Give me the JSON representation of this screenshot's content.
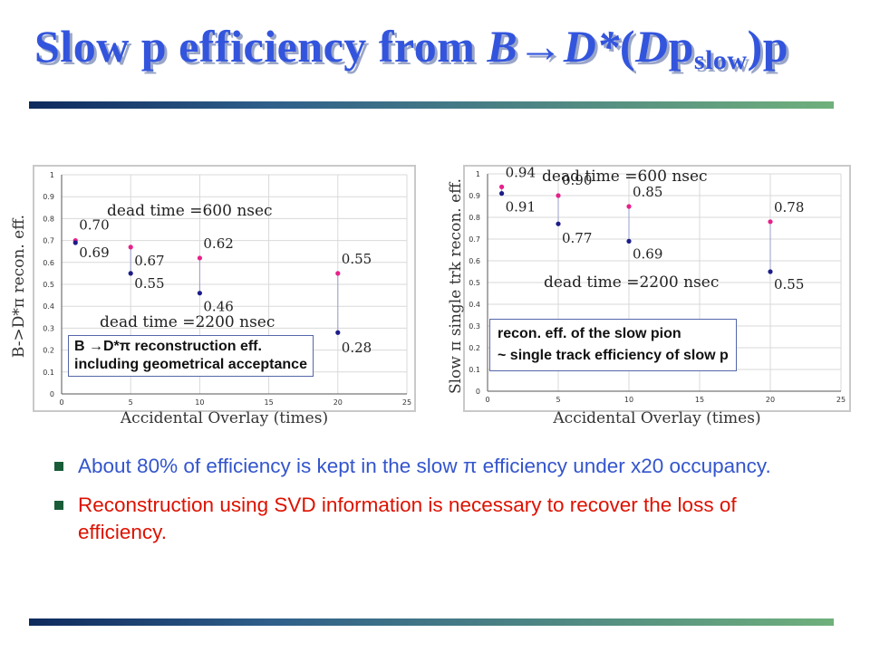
{
  "slide": {
    "title_parts": [
      "Slow p efficiency from ",
      "B",
      "→",
      "D*",
      "(",
      "D",
      "p",
      "slow",
      ")",
      "p"
    ],
    "accent_color": "#3355dd",
    "bullets": [
      {
        "text": "About 80% of efficiency is kept in the slow π efficiency under x20 occupancy.",
        "color": "#3355cc"
      },
      {
        "text": " Reconstruction using SVD information is necessary to recover the loss of efficiency.",
        "color": "#dd1100"
      }
    ]
  },
  "chart_data": [
    {
      "type": "scatter",
      "xlabel": "Accidental Overlay (times)",
      "ylabel": "B->D*π recon. eff.",
      "xlim": [
        0,
        25
      ],
      "ylim": [
        0,
        1
      ],
      "grid": true,
      "x_ticks": [
        "0",
        "5",
        "10",
        "15",
        "20",
        "25"
      ],
      "y_ticks": [
        "0",
        "0.1",
        "0.2",
        "0.3",
        "0.4",
        "0.5",
        "0.6",
        "0.7",
        "0.8",
        "0.9",
        "1"
      ],
      "series": [
        {
          "color": "#e8208a",
          "x": [
            1,
            5,
            10,
            20
          ],
          "y": [
            0.7,
            0.67,
            0.62,
            0.55
          ],
          "labels": [
            "0.70",
            "0.67",
            "0.62",
            "0.55"
          ]
        },
        {
          "color": "#1c1c8a",
          "x": [
            1,
            5,
            10,
            20
          ],
          "y": [
            0.69,
            0.55,
            0.46,
            0.28
          ],
          "labels": [
            "0.69",
            "0.55",
            "0.46",
            "0.28"
          ]
        }
      ],
      "annotations": [
        "dead time =600 nsec",
        "dead time =2200 nsec"
      ],
      "note": [
        "B →D*π reconstruction eff.",
        "including geometrical acceptance"
      ]
    },
    {
      "type": "scatter",
      "xlabel": "Accidental Overlay (times)",
      "ylabel": "Slow π single trk recon. eff.",
      "xlim": [
        0,
        25
      ],
      "ylim": [
        0,
        1
      ],
      "grid": true,
      "x_ticks": [
        "0",
        "5",
        "10",
        "15",
        "20",
        "25"
      ],
      "y_ticks": [
        "0",
        "0.1",
        "0.2",
        "0.3",
        "0.4",
        "0.5",
        "0.6",
        "0.7",
        "0.8",
        "0.9",
        "1"
      ],
      "series": [
        {
          "color": "#e8208a",
          "x": [
            1,
            5,
            10,
            20
          ],
          "y": [
            0.94,
            0.9,
            0.85,
            0.78
          ],
          "labels": [
            "0.94",
            "0.90",
            "0.85",
            "0.78"
          ]
        },
        {
          "color": "#1c1c8a",
          "x": [
            1,
            5,
            10,
            20
          ],
          "y": [
            0.91,
            0.77,
            0.69,
            0.55
          ],
          "labels": [
            "0.91",
            "0.77",
            "0.69",
            "0.55"
          ]
        }
      ],
      "annotations": [
        "dead time =600 nsec",
        "dead time =2200 nsec"
      ],
      "note": [
        "recon. eff.  of the slow pion",
        "~ single track efficiency of slow p"
      ]
    }
  ]
}
